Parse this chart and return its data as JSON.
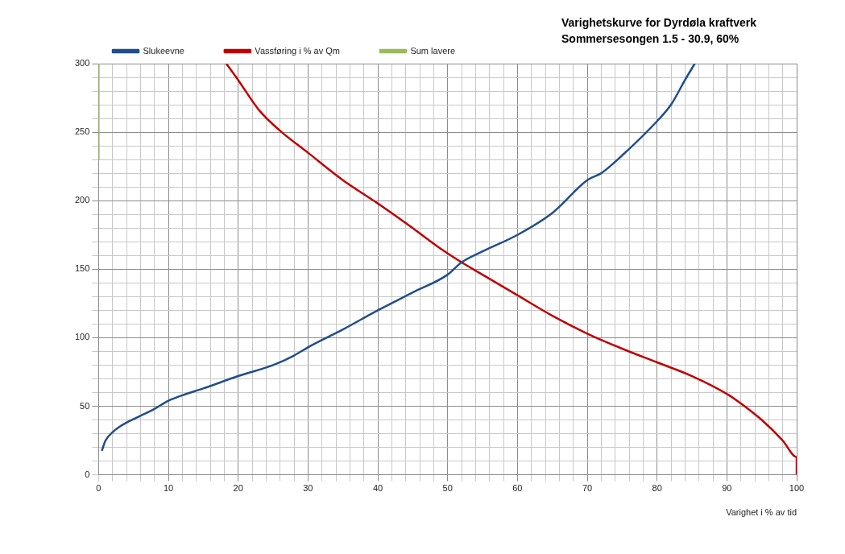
{
  "chart_data": {
    "type": "line",
    "title": "Varighetskurve for Dyrdøla kraftverk",
    "subtitle": "Sommersesongen 1.5 - 30.9, 60%",
    "xlabel": "Varighet i % av tid",
    "xlim": [
      0,
      100
    ],
    "ylim": [
      0,
      300
    ],
    "xticks": [
      0,
      {
        "value": 2,
        "label": null
      },
      {
        "value": 4,
        "label": null
      },
      {
        "value": 6,
        "label": null
      },
      {
        "value": 8,
        "label": null
      },
      10,
      {
        "value": 12,
        "label": null
      },
      {
        "value": 14,
        "label": null
      },
      {
        "value": 16,
        "label": null
      },
      {
        "value": 18,
        "label": null
      },
      20,
      {
        "value": 22,
        "label": null
      },
      {
        "value": 24,
        "label": null
      },
      {
        "value": 26,
        "label": null
      },
      {
        "value": 28,
        "label": null
      },
      30,
      {
        "value": 32,
        "label": null
      },
      {
        "value": 34,
        "label": null
      },
      {
        "value": 36,
        "label": null
      },
      {
        "value": 38,
        "label": null
      },
      40,
      {
        "value": 42,
        "label": null
      },
      {
        "value": 44,
        "label": null
      },
      {
        "value": 46,
        "label": null
      },
      {
        "value": 48,
        "label": null
      },
      50,
      {
        "value": 52,
        "label": null
      },
      {
        "value": 54,
        "label": null
      },
      {
        "value": 56,
        "label": null
      },
      {
        "value": 58,
        "label": null
      },
      60,
      {
        "value": 62,
        "label": null
      },
      {
        "value": 64,
        "label": null
      },
      {
        "value": 66,
        "label": null
      },
      {
        "value": 68,
        "label": null
      },
      70,
      {
        "value": 72,
        "label": null
      },
      {
        "value": 74,
        "label": null
      },
      {
        "value": 76,
        "label": null
      },
      {
        "value": 78,
        "label": null
      },
      80,
      {
        "value": 82,
        "label": null
      },
      {
        "value": 84,
        "label": null
      },
      {
        "value": 86,
        "label": null
      },
      {
        "value": 88,
        "label": null
      },
      90,
      {
        "value": 92,
        "label": null
      },
      {
        "value": 94,
        "label": null
      },
      {
        "value": 96,
        "label": null
      },
      {
        "value": 98,
        "label": null
      },
      100
    ],
    "yticks": [
      0,
      {
        "value": 10,
        "label": null
      },
      {
        "value": 20,
        "label": null
      },
      {
        "value": 30,
        "label": null
      },
      {
        "value": 40,
        "label": null
      },
      50,
      {
        "value": 60,
        "label": null
      },
      {
        "value": 70,
        "label": null
      },
      {
        "value": 80,
        "label": null
      },
      {
        "value": 90,
        "label": null
      },
      100,
      {
        "value": 110,
        "label": null
      },
      {
        "value": 120,
        "label": null
      },
      {
        "value": 130,
        "label": null
      },
      {
        "value": 140,
        "label": null
      },
      150,
      {
        "value": 160,
        "label": null
      },
      {
        "value": 170,
        "label": null
      },
      {
        "value": 180,
        "label": null
      },
      {
        "value": 190,
        "label": null
      },
      200,
      {
        "value": 210,
        "label": null
      },
      {
        "value": 220,
        "label": null
      },
      {
        "value": 230,
        "label": null
      },
      {
        "value": 240,
        "label": null
      },
      250,
      {
        "value": 260,
        "label": null
      },
      {
        "value": 270,
        "label": null
      },
      {
        "value": 280,
        "label": null
      },
      {
        "value": 290,
        "label": null
      },
      300
    ],
    "grid": true,
    "legend": "top left",
    "marker": "none",
    "line_style": "solid",
    "series": [
      {
        "name": "Slukeevne",
        "color": "#1f4e8c",
        "x": [
          0.5,
          1,
          2,
          3,
          4,
          6,
          8,
          10,
          12,
          15,
          20,
          25,
          28,
          30,
          35,
          40,
          45,
          50,
          52,
          55,
          60,
          65,
          70,
          72,
          75,
          80,
          82,
          84,
          85.4
        ],
        "values": [
          18,
          25,
          31,
          35,
          38,
          43,
          48,
          54,
          58,
          63,
          72,
          80,
          87,
          93,
          106,
          120,
          133,
          146,
          155,
          163,
          175,
          191,
          215,
          220,
          233,
          258,
          270,
          288,
          300
        ]
      },
      {
        "name": "Vassføring i % av Qm",
        "color": "#c00000",
        "x": [
          18.3,
          20,
          23,
          26,
          30,
          35,
          40,
          45,
          48.7,
          52,
          55,
          60,
          65,
          70,
          75,
          80,
          85,
          90,
          92,
          95,
          98,
          100,
          100
        ],
        "values": [
          300,
          288,
          266,
          251,
          235,
          215,
          198,
          180,
          166,
          155,
          146,
          131,
          116,
          103,
          92,
          82,
          72,
          59,
          52,
          40,
          25,
          13,
          0
        ]
      },
      {
        "name": "Sum lavere",
        "color": "#9bbb59",
        "x": [
          0,
          0
        ],
        "values": [
          230,
          300
        ]
      }
    ]
  }
}
